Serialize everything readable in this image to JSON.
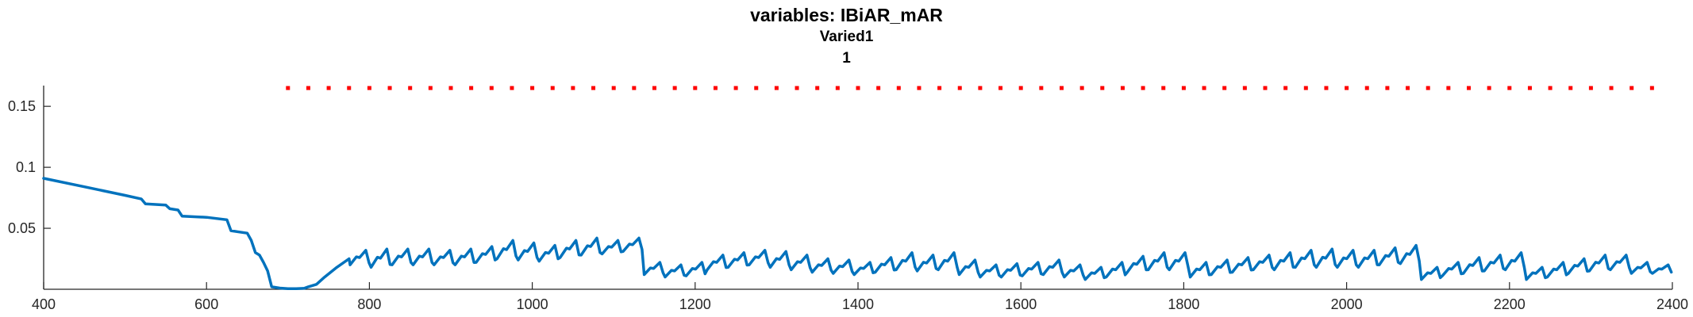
{
  "figure": {
    "title_lines": [
      "variables: IBiAR_mAR",
      "Varied1",
      "1"
    ]
  },
  "chart_data": {
    "type": "line",
    "title": "variables: IBiAR_mAR",
    "subtitle": [
      "Varied1",
      "1"
    ],
    "xlabel": "",
    "ylabel": "",
    "xlim": [
      400,
      2400
    ],
    "ylim": [
      0,
      0.167
    ],
    "grid": false,
    "x_ticks": [
      400,
      600,
      800,
      1000,
      1200,
      1400,
      1600,
      1800,
      2000,
      2200,
      2400
    ],
    "x_tick_labels": [
      "400",
      "600",
      "800",
      "1000",
      "1200",
      "1400",
      "1600",
      "1800",
      "2000",
      "2200",
      "2400"
    ],
    "y_ticks": [
      0.05,
      0.1,
      0.15
    ],
    "y_tick_labels": [
      "0.05",
      "0.1",
      "0.15"
    ],
    "colors": {
      "series": "#0072BD",
      "markers": "#FF0000",
      "axes": "#262626"
    },
    "series": [
      {
        "style": "line",
        "x": [
          400,
          450,
          500,
          520,
          525,
          550,
          555,
          565,
          570,
          600,
          625,
          630,
          640,
          650,
          655,
          660,
          665,
          670,
          675,
          680,
          690,
          700,
          710,
          720,
          725,
          735,
          745,
          760,
          775
        ],
        "y": [
          0.091,
          0.084,
          0.077,
          0.074,
          0.07,
          0.069,
          0.066,
          0.065,
          0.06,
          0.059,
          0.057,
          0.048,
          0.047,
          0.046,
          0.04,
          0.03,
          0.028,
          0.022,
          0.015,
          0.002,
          0.001,
          0.0005,
          0.0005,
          0.0008,
          0.002,
          0.004,
          0.01,
          0.018,
          0.025
        ]
      },
      {
        "style": "dotted",
        "x_start": 700,
        "x_end": 2390,
        "y": 0.165
      }
    ],
    "oscillation": {
      "x_start": 775,
      "x_end": 2400,
      "approx_period": 30,
      "troughs": [
        0.02,
        0.018,
        0.02,
        0.02,
        0.02,
        0.02,
        0.022,
        0.025,
        0.024,
        0.023,
        0.026,
        0.028,
        0.029,
        0.031,
        0.012,
        0.01,
        0.011,
        0.016,
        0.018,
        0.02,
        0.018,
        0.016,
        0.014,
        0.013,
        0.012,
        0.014,
        0.016,
        0.015,
        0.016,
        0.012,
        0.01,
        0.01,
        0.011,
        0.012,
        0.01,
        0.008,
        0.01,
        0.014,
        0.016,
        0.016,
        0.01,
        0.012,
        0.014,
        0.016,
        0.016,
        0.018,
        0.018,
        0.018,
        0.018,
        0.02,
        0.021,
        0.008,
        0.011,
        0.013,
        0.015,
        0.016,
        0.008,
        0.01,
        0.013,
        0.015,
        0.016,
        0.013,
        0.013
      ],
      "peaks": [
        0.032,
        0.033,
        0.033,
        0.033,
        0.032,
        0.033,
        0.035,
        0.04,
        0.038,
        0.036,
        0.04,
        0.042,
        0.04,
        0.042,
        0.022,
        0.02,
        0.022,
        0.028,
        0.03,
        0.032,
        0.031,
        0.028,
        0.025,
        0.024,
        0.022,
        0.026,
        0.03,
        0.028,
        0.03,
        0.024,
        0.02,
        0.021,
        0.022,
        0.024,
        0.02,
        0.018,
        0.022,
        0.027,
        0.03,
        0.03,
        0.022,
        0.024,
        0.026,
        0.028,
        0.03,
        0.032,
        0.033,
        0.032,
        0.032,
        0.034,
        0.036,
        0.018,
        0.022,
        0.026,
        0.028,
        0.03,
        0.018,
        0.022,
        0.025,
        0.028,
        0.028,
        0.022,
        0.02
      ]
    }
  }
}
